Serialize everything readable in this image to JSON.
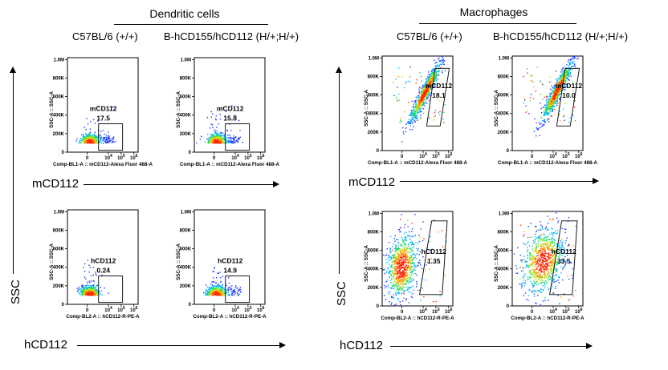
{
  "groups": [
    {
      "title": "Dendritic cells",
      "columns": [
        "C57BL/6 (+/+)",
        "B-hCD155/hCD112 (H/+;H/+)"
      ]
    },
    {
      "title": "Macrophages",
      "columns": [
        "C57BL/6 (+/+)",
        "B-hCD155/hCD112 (H/+;H/+)"
      ]
    }
  ],
  "row_axis_labels": {
    "mcd112": "mCD112",
    "hcd112": "hCD112",
    "ssc": "SSC"
  },
  "chart_data": [
    {
      "type": "scatter",
      "population": "Dendritic cells",
      "strain": "C57BL/6 (+/+)",
      "marker": "mCD112",
      "gate_label": "mCD112",
      "gate_value": "17.5",
      "ylabel": "SSC-A :: SSC-A",
      "xlabel": "Comp-BL1-A :: mCD112-Alexa Fluor 488-A",
      "yticks": [
        "1.0M",
        "800K",
        "600K",
        "400K",
        "200K",
        "0"
      ],
      "xticks": [
        "0",
        "10^4",
        "10^5",
        "10^6"
      ],
      "ylim": [
        0,
        1000000
      ]
    },
    {
      "type": "scatter",
      "population": "Dendritic cells",
      "strain": "B-hCD155/hCD112 (H/+;H/+)",
      "marker": "mCD112",
      "gate_label": "mCD112",
      "gate_value": "15.8",
      "ylabel": "SSC-A :: SSC-A",
      "xlabel": "Comp-BL1-A :: mCD112-Alexa Fluor 488-A",
      "yticks": [
        "1.0M",
        "800K",
        "600K",
        "400K",
        "200K",
        "0"
      ],
      "xticks": [
        "0",
        "10^4",
        "10^5",
        "10^6"
      ],
      "ylim": [
        0,
        1000000
      ]
    },
    {
      "type": "scatter",
      "population": "Dendritic cells",
      "strain": "C57BL/6 (+/+)",
      "marker": "hCD112",
      "gate_label": "hCD112",
      "gate_value": "0.24",
      "ylabel": "SSC-A :: SSC-A",
      "xlabel": "Comp-BL2-A :: hCD112-R-PE-A",
      "yticks": [
        "1.0M",
        "800K",
        "600K",
        "400K",
        "200K",
        "0"
      ],
      "xticks": [
        "0",
        "10^4",
        "10^5",
        "10^6"
      ],
      "ylim": [
        0,
        1000000
      ]
    },
    {
      "type": "scatter",
      "population": "Dendritic cells",
      "strain": "B-hCD155/hCD112 (H/+;H/+)",
      "marker": "hCD112",
      "gate_label": "hCD112",
      "gate_value": "14.9",
      "ylabel": "SSC-A :: SSC-A",
      "xlabel": "Comp-BL2-A :: hCD112-R-PE-A",
      "yticks": [
        "1.0M",
        "800K",
        "600K",
        "400K",
        "200K",
        "0"
      ],
      "xticks": [
        "0",
        "10^4",
        "10^5",
        "10^6"
      ],
      "ylim": [
        0,
        1000000
      ]
    },
    {
      "type": "scatter",
      "population": "Macrophages",
      "strain": "C57BL/6 (+/+)",
      "marker": "mCD112",
      "gate_label": "mCD112",
      "gate_value": "18.1",
      "ylabel": "SSC-A :: SSC-A",
      "xlabel": "Comp-BL1-A :: mCD112-Alexa Fluor 488-A",
      "yticks": [
        "1.0M",
        "800K",
        "600K",
        "400K",
        "200K",
        "0"
      ],
      "xticks": [
        "0",
        "10^4",
        "10^5",
        "10^6"
      ],
      "ylim": [
        0,
        1000000
      ]
    },
    {
      "type": "scatter",
      "population": "Macrophages",
      "strain": "B-hCD155/hCD112 (H/+;H/+)",
      "marker": "mCD112",
      "gate_label": "mCD112",
      "gate_value": "10.0",
      "ylabel": "SSC-A :: SSC-A",
      "xlabel": "Comp-BL1-A :: mCD112-Alexa Fluor 488-A",
      "yticks": [
        "1.0M",
        "800K",
        "600K",
        "400K",
        "200K",
        "0"
      ],
      "xticks": [
        "0",
        "10^4",
        "10^5",
        "10^6"
      ],
      "ylim": [
        0,
        1000000
      ]
    },
    {
      "type": "scatter",
      "population": "Macrophages",
      "strain": "C57BL/6 (+/+)",
      "marker": "hCD112",
      "gate_label": "hCD112",
      "gate_value": "1.35",
      "ylabel": "SSC-A :: SSC-A",
      "xlabel": "Comp-BL2-A :: hCD112-R-PE-A",
      "yticks": [
        "1.0M",
        "800K",
        "600K",
        "400K",
        "200K",
        "0"
      ],
      "xticks": [
        "0",
        "10^4",
        "10^5",
        "10^6"
      ],
      "ylim": [
        0,
        1000000
      ]
    },
    {
      "type": "scatter",
      "population": "Macrophages",
      "strain": "B-hCD155/hCD112 (H/+;H/+)",
      "marker": "hCD112",
      "gate_label": "hCD112",
      "gate_value": "33.5",
      "ylabel": "SSC-A :: SSC-A",
      "xlabel": "Comp-BL2-A :: hCD112-R-PE-A",
      "yticks": [
        "1.0M",
        "800K",
        "600K",
        "400K",
        "200K",
        "0"
      ],
      "xticks": [
        "0",
        "10^4",
        "10^5",
        "10^6"
      ],
      "ylim": [
        0,
        1000000
      ]
    }
  ]
}
